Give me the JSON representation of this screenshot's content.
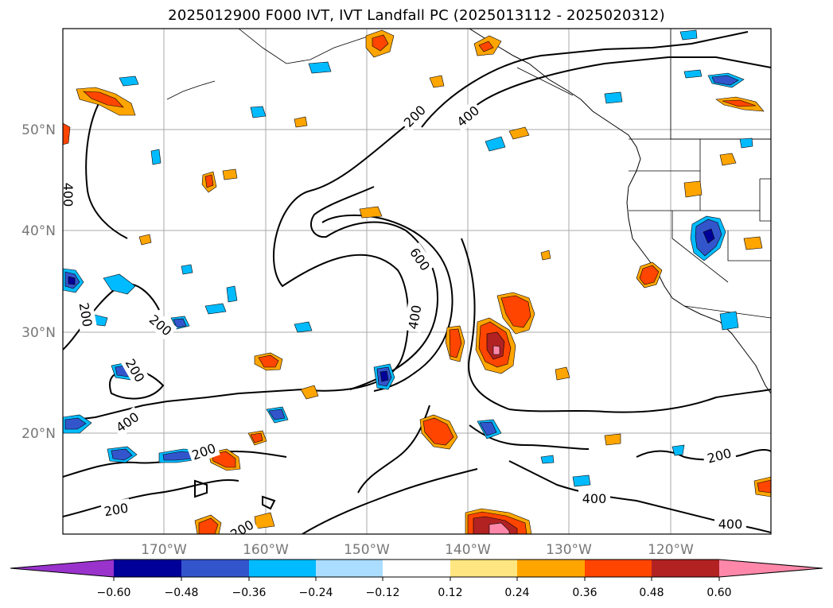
{
  "title": "2025012900 F000 IVT, IVT Landfall PC (2025013112 - 2025020312)",
  "latitude_labels": [
    "50°N",
    "40°N",
    "30°N",
    "20°N"
  ],
  "longitude_labels": [
    "170°W",
    "160°W",
    "150°W",
    "140°W",
    "130°W",
    "120°W"
  ],
  "contour_labels": [
    "200",
    "400",
    "600",
    "200",
    "400",
    "400",
    "200",
    "200",
    "400",
    "200",
    "200",
    "200",
    "400",
    "400",
    "200"
  ],
  "colorbar": {
    "ticks": [
      "−0.60",
      "−0.48",
      "−0.36",
      "−0.24",
      "−0.12",
      "0.12",
      "0.24",
      "0.36",
      "0.48",
      "0.60"
    ],
    "colors": [
      "#9933cc",
      "#000099",
      "#3355cc",
      "#00bbff",
      "#aaddff",
      "#ffffff",
      "#ffe680",
      "#ffa500",
      "#ff4500",
      "#b22222",
      "#ff88aa"
    ]
  }
}
